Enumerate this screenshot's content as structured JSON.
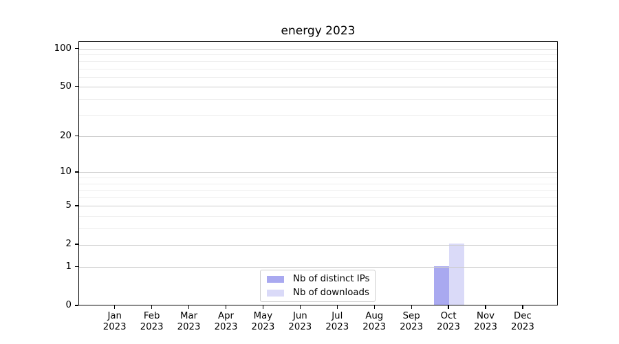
{
  "figure": {
    "title": "energy 2023",
    "background": "#ffffff"
  },
  "chart_data": {
    "type": "bar",
    "title": "energy 2023",
    "categories": [
      "Jan 2023",
      "Feb 2023",
      "Mar 2023",
      "Apr 2023",
      "May 2023",
      "Jun 2023",
      "Jul 2023",
      "Aug 2023",
      "Sep 2023",
      "Oct 2023",
      "Nov 2023",
      "Dec 2023"
    ],
    "series": [
      {
        "name": "Nb of distinct IPs",
        "color": "#a9a9f0",
        "values": [
          0,
          0,
          0,
          0,
          0,
          0,
          0,
          0,
          0,
          1,
          0,
          0
        ]
      },
      {
        "name": "Nb of downloads",
        "color": "#dadaf8",
        "values": [
          0,
          0,
          0,
          0,
          0,
          0,
          0,
          0,
          0,
          2,
          0,
          0
        ]
      }
    ],
    "xlabel": "",
    "ylabel": "",
    "scale": "log10(1+y)",
    "ylim": [
      0,
      114
    ],
    "yticks": [
      0,
      1,
      2,
      5,
      10,
      20,
      50,
      100
    ],
    "minor_yticks": [
      3,
      4,
      6,
      7,
      8,
      9,
      30,
      40,
      60,
      70,
      80,
      90
    ],
    "grid": "horizontal",
    "legend_position": "lower center"
  },
  "legend": {
    "items": [
      {
        "label": "Nb of distinct IPs",
        "color": "#a9a9f0"
      },
      {
        "label": "Nb of downloads",
        "color": "#dadaf8"
      }
    ]
  },
  "colors": {
    "major_grid": "#cccccc",
    "minor_grid": "#eeeeee",
    "spine": "#000000",
    "text": "#000000"
  }
}
